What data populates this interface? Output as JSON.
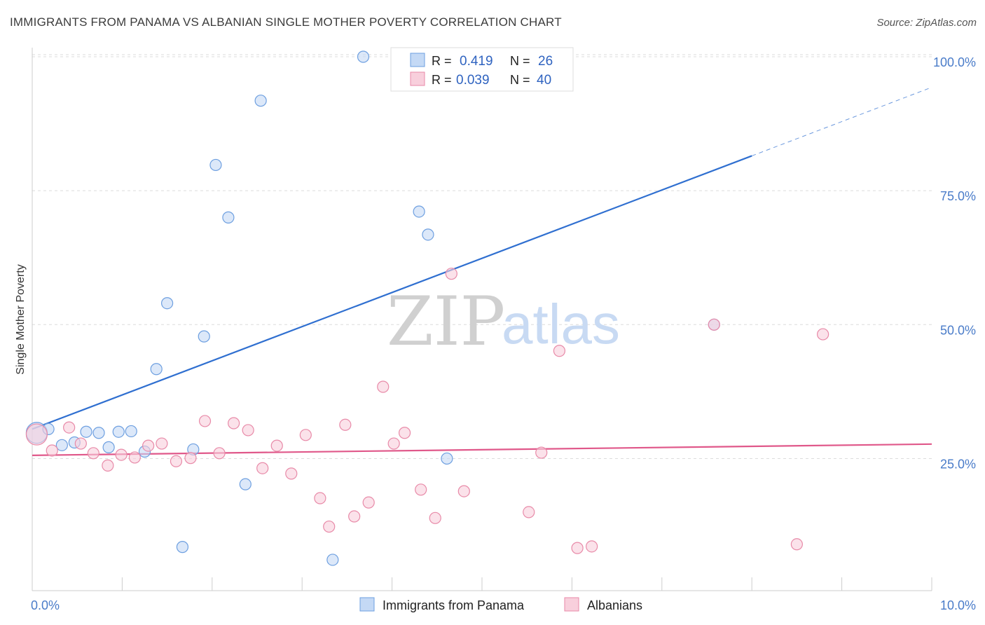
{
  "header": {
    "title": "IMMIGRANTS FROM PANAMA VS ALBANIAN SINGLE MOTHER POVERTY CORRELATION CHART",
    "source": "Source: ZipAtlas.com"
  },
  "watermark": {
    "zip": "ZIP",
    "atlas": "atlas"
  },
  "chart_data": {
    "type": "scatter",
    "title": "IMMIGRANTS FROM PANAMA VS ALBANIAN SINGLE MOTHER POVERTY CORRELATION CHART",
    "xlabel": "",
    "ylabel": "Single Mother Poverty",
    "xlim": [
      0,
      10
    ],
    "ylim": [
      3,
      103
    ],
    "x_tick_labels": [
      {
        "value": 0,
        "label": "0.0%"
      },
      {
        "value": 10,
        "label": "10.0%"
      }
    ],
    "y_tick_labels": [
      {
        "value": 25,
        "label": "25.0%"
      },
      {
        "value": 50,
        "label": "50.0%"
      },
      {
        "value": 75,
        "label": "75.0%"
      },
      {
        "value": 100,
        "label": "100.0%"
      }
    ],
    "grid": true,
    "legend_position": "bottom-center",
    "stats_box": [
      {
        "r_label": "R =",
        "r_value": "0.419",
        "n_label": "N =",
        "n_value": "26"
      },
      {
        "r_label": "R =",
        "r_value": "0.039",
        "n_label": "N =",
        "n_value": "40"
      }
    ],
    "series": [
      {
        "name": "Immigrants from Panama",
        "color": "#6d9fe0",
        "fill": "#c4d9f5",
        "trend": {
          "x": [
            0,
            8
          ],
          "y": [
            30.5,
            81.5
          ],
          "extend_to_x": 10,
          "extend_y": 94.3,
          "color": "#2f6fd0"
        },
        "points": [
          {
            "x": 0.05,
            "y": 29.8,
            "size": "large"
          },
          {
            "x": 0.18,
            "y": 30.5
          },
          {
            "x": 0.33,
            "y": 27.5
          },
          {
            "x": 0.47,
            "y": 28.0
          },
          {
            "x": 0.6,
            "y": 30.0
          },
          {
            "x": 0.74,
            "y": 29.8
          },
          {
            "x": 0.85,
            "y": 27.1
          },
          {
            "x": 0.96,
            "y": 30.0
          },
          {
            "x": 1.1,
            "y": 30.1
          },
          {
            "x": 1.25,
            "y": 26.3
          },
          {
            "x": 1.38,
            "y": 41.7
          },
          {
            "x": 1.5,
            "y": 54.0
          },
          {
            "x": 1.67,
            "y": 8.5
          },
          {
            "x": 1.79,
            "y": 26.7
          },
          {
            "x": 1.91,
            "y": 47.8
          },
          {
            "x": 2.04,
            "y": 79.8
          },
          {
            "x": 2.18,
            "y": 70.0
          },
          {
            "x": 2.37,
            "y": 20.2
          },
          {
            "x": 2.54,
            "y": 91.8
          },
          {
            "x": 3.34,
            "y": 6.1
          },
          {
            "x": 3.68,
            "y": 100.0
          },
          {
            "x": 4.2,
            "y": 100.0
          },
          {
            "x": 4.3,
            "y": 71.1
          },
          {
            "x": 4.4,
            "y": 66.8
          },
          {
            "x": 4.61,
            "y": 25.0
          },
          {
            "x": 7.58,
            "y": 50.0
          }
        ]
      },
      {
        "name": "Albanians",
        "color": "#e88aa8",
        "fill": "#f8cfdc",
        "trend": {
          "x": [
            0,
            10
          ],
          "y": [
            25.6,
            27.7
          ],
          "color": "#e0588a"
        },
        "points": [
          {
            "x": 0.05,
            "y": 29.5,
            "size": "large"
          },
          {
            "x": 0.22,
            "y": 26.5
          },
          {
            "x": 0.41,
            "y": 30.8
          },
          {
            "x": 0.54,
            "y": 27.8
          },
          {
            "x": 0.68,
            "y": 26.0
          },
          {
            "x": 0.84,
            "y": 23.7
          },
          {
            "x": 0.99,
            "y": 25.7
          },
          {
            "x": 1.14,
            "y": 25.2
          },
          {
            "x": 1.29,
            "y": 27.4
          },
          {
            "x": 1.44,
            "y": 27.8
          },
          {
            "x": 1.6,
            "y": 24.5
          },
          {
            "x": 1.76,
            "y": 25.1
          },
          {
            "x": 1.92,
            "y": 32.0
          },
          {
            "x": 2.08,
            "y": 26.0
          },
          {
            "x": 2.24,
            "y": 31.6
          },
          {
            "x": 2.4,
            "y": 30.3
          },
          {
            "x": 2.56,
            "y": 23.2
          },
          {
            "x": 2.72,
            "y": 27.4
          },
          {
            "x": 2.88,
            "y": 22.2
          },
          {
            "x": 3.04,
            "y": 29.4
          },
          {
            "x": 3.2,
            "y": 17.6
          },
          {
            "x": 3.3,
            "y": 12.3
          },
          {
            "x": 3.48,
            "y": 31.3
          },
          {
            "x": 3.58,
            "y": 14.2
          },
          {
            "x": 3.74,
            "y": 16.8
          },
          {
            "x": 3.9,
            "y": 38.4
          },
          {
            "x": 4.02,
            "y": 27.8
          },
          {
            "x": 4.14,
            "y": 29.8
          },
          {
            "x": 4.32,
            "y": 19.2
          },
          {
            "x": 4.48,
            "y": 13.9
          },
          {
            "x": 4.66,
            "y": 59.5
          },
          {
            "x": 4.8,
            "y": 18.9
          },
          {
            "x": 5.52,
            "y": 15.0
          },
          {
            "x": 5.66,
            "y": 26.1
          },
          {
            "x": 5.86,
            "y": 45.1
          },
          {
            "x": 6.06,
            "y": 8.3
          },
          {
            "x": 6.22,
            "y": 8.6
          },
          {
            "x": 7.58,
            "y": 50.0
          },
          {
            "x": 8.5,
            "y": 9.0
          },
          {
            "x": 8.79,
            "y": 48.2
          }
        ]
      }
    ]
  }
}
